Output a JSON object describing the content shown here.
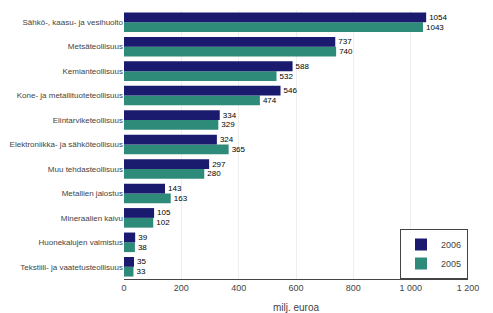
{
  "chart_data": {
    "type": "bar",
    "orientation": "horizontal",
    "categories": [
      "Tekstiili- ja vaatetusteollisuus",
      "Huonekalujen valmistus",
      "Mineraalien kaivu",
      "Metallien jalostus",
      "Muu tehdasteollisuus",
      "Elektroniikka- ja sähköteollisuus",
      "Elintarviketeollisuus",
      "Kone- ja metallituoteteollisuus",
      "Kemianteollisuus",
      "Metsäteollisuus",
      "Sähkö-, kaasu- ja vesihuolto"
    ],
    "series": [
      {
        "name": "2006",
        "color": "#1a1a6e",
        "values": [
          35,
          39,
          105,
          143,
          297,
          324,
          334,
          546,
          588,
          737,
          1054
        ]
      },
      {
        "name": "2005",
        "color": "#2e8b7a",
        "values": [
          33,
          38,
          102,
          163,
          280,
          365,
          329,
          474,
          532,
          740,
          1043
        ]
      }
    ],
    "xlabel": "milj. euroa",
    "xlim": [
      0,
      1200
    ],
    "xticks": [
      0,
      200,
      400,
      600,
      800,
      {
        "value": 1000,
        "label": "1 000"
      },
      {
        "value": 1200,
        "label": "1 200"
      }
    ],
    "grid": true,
    "legend": "lower right",
    "data_labels": true
  }
}
